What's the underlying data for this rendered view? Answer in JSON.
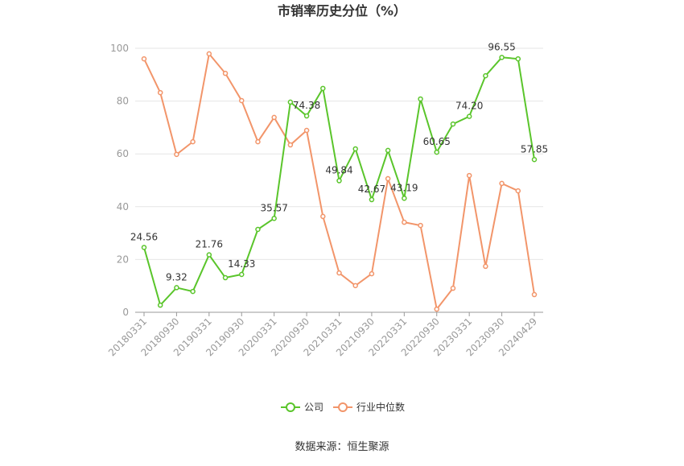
{
  "chart_data": {
    "type": "line",
    "title": "市销率历史分位（%）",
    "source": "数据来源：恒生聚源",
    "categories": [
      "20180331",
      null,
      "20180930",
      null,
      "20190331",
      null,
      "20190930",
      null,
      "20200331",
      null,
      "20200930",
      null,
      "20210331",
      null,
      "20210930",
      null,
      "20220331",
      null,
      "20220930",
      null,
      "20230331",
      null,
      "20230930",
      null,
      "20240429"
    ],
    "series": [
      {
        "name": "公司",
        "color": "#5ac52b",
        "values": [
          24.56,
          2.7,
          9.32,
          7.9,
          21.76,
          13.1,
          14.33,
          31.4,
          35.57,
          79.6,
          74.38,
          84.8,
          49.84,
          61.9,
          42.67,
          61.3,
          43.19,
          80.8,
          60.65,
          71.3,
          74.2,
          89.6,
          96.55,
          96.0,
          57.85
        ],
        "value_labels": [
          "24.56",
          null,
          "9.32",
          null,
          "21.76",
          null,
          "14.33",
          null,
          "35.57",
          null,
          "74.38",
          null,
          "49.84",
          null,
          "42.67",
          null,
          "43.19",
          null,
          "60.65",
          null,
          "74.20",
          null,
          "96.55",
          null,
          "57.85"
        ]
      },
      {
        "name": "行业中位数",
        "color": "#f2956a",
        "values": [
          96.0,
          83.2,
          59.8,
          64.6,
          97.9,
          90.5,
          80.2,
          64.6,
          73.8,
          63.4,
          68.9,
          36.3,
          14.9,
          10.1,
          14.6,
          50.6,
          34.1,
          32.9,
          1.2,
          9.1,
          51.8,
          17.4,
          48.8,
          46.0,
          6.7
        ]
      }
    ],
    "ylim": [
      0,
      100
    ],
    "yticks": [
      0,
      20,
      40,
      60,
      80,
      100
    ],
    "grid": true,
    "legend": "bottom"
  }
}
